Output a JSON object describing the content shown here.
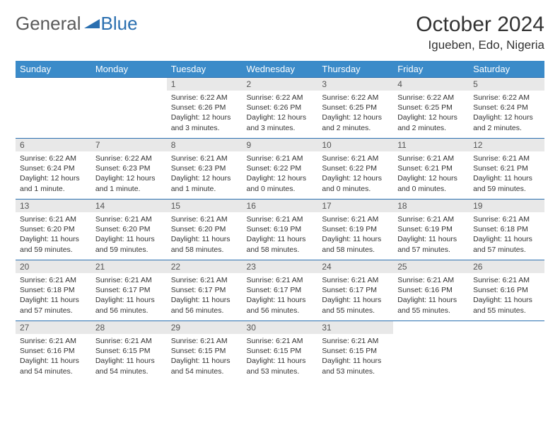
{
  "logo": {
    "text1": "General",
    "text2": "Blue",
    "tri_color": "#2a6fb0"
  },
  "title": "October 2024",
  "location": "Igueben, Edo, Nigeria",
  "colors": {
    "header_bg": "#3b8bc9",
    "header_fg": "#ffffff",
    "daynum_bg": "#e8e8e8",
    "rule": "#2a6fb0",
    "text": "#333333",
    "background": "#ffffff"
  },
  "weekdays": [
    "Sunday",
    "Monday",
    "Tuesday",
    "Wednesday",
    "Thursday",
    "Friday",
    "Saturday"
  ],
  "weeks": [
    [
      null,
      null,
      {
        "n": "1",
        "sunrise": "6:22 AM",
        "sunset": "6:26 PM",
        "daylight": "12 hours and 3 minutes."
      },
      {
        "n": "2",
        "sunrise": "6:22 AM",
        "sunset": "6:26 PM",
        "daylight": "12 hours and 3 minutes."
      },
      {
        "n": "3",
        "sunrise": "6:22 AM",
        "sunset": "6:25 PM",
        "daylight": "12 hours and 2 minutes."
      },
      {
        "n": "4",
        "sunrise": "6:22 AM",
        "sunset": "6:25 PM",
        "daylight": "12 hours and 2 minutes."
      },
      {
        "n": "5",
        "sunrise": "6:22 AM",
        "sunset": "6:24 PM",
        "daylight": "12 hours and 2 minutes."
      }
    ],
    [
      {
        "n": "6",
        "sunrise": "6:22 AM",
        "sunset": "6:24 PM",
        "daylight": "12 hours and 1 minute."
      },
      {
        "n": "7",
        "sunrise": "6:22 AM",
        "sunset": "6:23 PM",
        "daylight": "12 hours and 1 minute."
      },
      {
        "n": "8",
        "sunrise": "6:21 AM",
        "sunset": "6:23 PM",
        "daylight": "12 hours and 1 minute."
      },
      {
        "n": "9",
        "sunrise": "6:21 AM",
        "sunset": "6:22 PM",
        "daylight": "12 hours and 0 minutes."
      },
      {
        "n": "10",
        "sunrise": "6:21 AM",
        "sunset": "6:22 PM",
        "daylight": "12 hours and 0 minutes."
      },
      {
        "n": "11",
        "sunrise": "6:21 AM",
        "sunset": "6:21 PM",
        "daylight": "12 hours and 0 minutes."
      },
      {
        "n": "12",
        "sunrise": "6:21 AM",
        "sunset": "6:21 PM",
        "daylight": "11 hours and 59 minutes."
      }
    ],
    [
      {
        "n": "13",
        "sunrise": "6:21 AM",
        "sunset": "6:20 PM",
        "daylight": "11 hours and 59 minutes."
      },
      {
        "n": "14",
        "sunrise": "6:21 AM",
        "sunset": "6:20 PM",
        "daylight": "11 hours and 59 minutes."
      },
      {
        "n": "15",
        "sunrise": "6:21 AM",
        "sunset": "6:20 PM",
        "daylight": "11 hours and 58 minutes."
      },
      {
        "n": "16",
        "sunrise": "6:21 AM",
        "sunset": "6:19 PM",
        "daylight": "11 hours and 58 minutes."
      },
      {
        "n": "17",
        "sunrise": "6:21 AM",
        "sunset": "6:19 PM",
        "daylight": "11 hours and 58 minutes."
      },
      {
        "n": "18",
        "sunrise": "6:21 AM",
        "sunset": "6:19 PM",
        "daylight": "11 hours and 57 minutes."
      },
      {
        "n": "19",
        "sunrise": "6:21 AM",
        "sunset": "6:18 PM",
        "daylight": "11 hours and 57 minutes."
      }
    ],
    [
      {
        "n": "20",
        "sunrise": "6:21 AM",
        "sunset": "6:18 PM",
        "daylight": "11 hours and 57 minutes."
      },
      {
        "n": "21",
        "sunrise": "6:21 AM",
        "sunset": "6:17 PM",
        "daylight": "11 hours and 56 minutes."
      },
      {
        "n": "22",
        "sunrise": "6:21 AM",
        "sunset": "6:17 PM",
        "daylight": "11 hours and 56 minutes."
      },
      {
        "n": "23",
        "sunrise": "6:21 AM",
        "sunset": "6:17 PM",
        "daylight": "11 hours and 56 minutes."
      },
      {
        "n": "24",
        "sunrise": "6:21 AM",
        "sunset": "6:17 PM",
        "daylight": "11 hours and 55 minutes."
      },
      {
        "n": "25",
        "sunrise": "6:21 AM",
        "sunset": "6:16 PM",
        "daylight": "11 hours and 55 minutes."
      },
      {
        "n": "26",
        "sunrise": "6:21 AM",
        "sunset": "6:16 PM",
        "daylight": "11 hours and 55 minutes."
      }
    ],
    [
      {
        "n": "27",
        "sunrise": "6:21 AM",
        "sunset": "6:16 PM",
        "daylight": "11 hours and 54 minutes."
      },
      {
        "n": "28",
        "sunrise": "6:21 AM",
        "sunset": "6:15 PM",
        "daylight": "11 hours and 54 minutes."
      },
      {
        "n": "29",
        "sunrise": "6:21 AM",
        "sunset": "6:15 PM",
        "daylight": "11 hours and 54 minutes."
      },
      {
        "n": "30",
        "sunrise": "6:21 AM",
        "sunset": "6:15 PM",
        "daylight": "11 hours and 53 minutes."
      },
      {
        "n": "31",
        "sunrise": "6:21 AM",
        "sunset": "6:15 PM",
        "daylight": "11 hours and 53 minutes."
      },
      null,
      null
    ]
  ]
}
